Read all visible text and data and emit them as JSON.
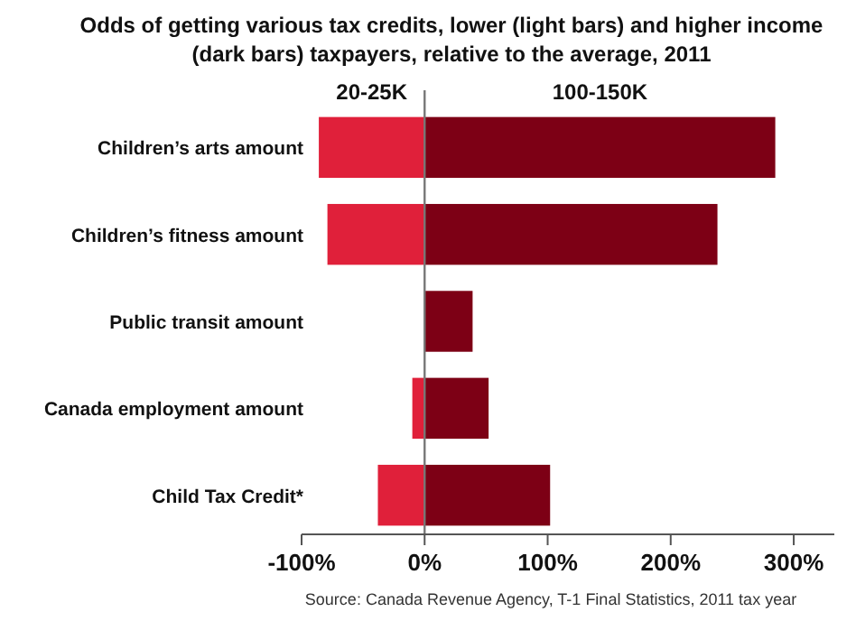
{
  "chart_data": {
    "type": "bar",
    "orientation": "horizontal",
    "stacked": true,
    "title": "Odds of getting various tax credits, lower (light bars) and higher income (dark bars) taxpayers, relative to the average, 2011",
    "categories": [
      "Children’s arts amount",
      "Children’s fitness amount",
      "Public transit amount",
      "Canada employment amount",
      "Child Tax Credit*"
    ],
    "series": [
      {
        "name": "20-25K",
        "color": "#e0203a",
        "values": [
          -86,
          -79,
          0,
          -10,
          -38
        ]
      },
      {
        "name": "100-150K",
        "color": "#7d0015",
        "values": [
          285,
          238,
          39,
          52,
          102
        ]
      }
    ],
    "xlim": [
      -100,
      333
    ],
    "xticks": [
      {
        "value": -100,
        "label": "-100%"
      },
      {
        "value": 0,
        "label": "0%"
      },
      {
        "value": 100,
        "label": "100%"
      },
      {
        "value": 200,
        "label": "200%"
      },
      {
        "value": 300,
        "label": "300%"
      }
    ],
    "ref_lines": [
      {
        "axis": "x",
        "value": 0,
        "color": "#777777"
      }
    ],
    "legend": "top",
    "annotations": [
      "Source: Canada Revenue Agency, T-1 Final Statistics, 2011 tax year"
    ]
  }
}
